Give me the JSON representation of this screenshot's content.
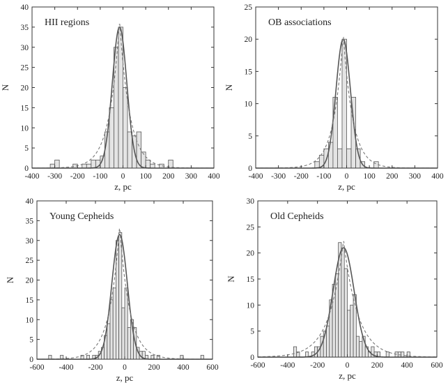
{
  "figure": {
    "colors": {
      "hist_fill": "#e4e4e4",
      "hist_edge": "#555555",
      "curve_solid": "#555555",
      "curve_dashed": "#777777",
      "axis": "#333333"
    }
  },
  "chart_data": [
    {
      "type": "bar",
      "title": "HII regions",
      "xlabel": "z, pc",
      "ylabel": "N",
      "xlim": [
        -400,
        400
      ],
      "ylim": [
        0,
        40
      ],
      "xticks": [
        -400,
        -300,
        -200,
        -100,
        0,
        100,
        200,
        300,
        400
      ],
      "yticks": [
        0,
        5,
        10,
        15,
        20,
        25,
        30,
        35,
        40
      ],
      "bin_width": 20,
      "bins": [
        {
          "x": -310,
          "n": 1
        },
        {
          "x": -290,
          "n": 2
        },
        {
          "x": -210,
          "n": 1
        },
        {
          "x": -190,
          "n": 0
        },
        {
          "x": -170,
          "n": 1
        },
        {
          "x": -150,
          "n": 1
        },
        {
          "x": -130,
          "n": 2
        },
        {
          "x": -110,
          "n": 2
        },
        {
          "x": -90,
          "n": 3
        },
        {
          "x": -70,
          "n": 9
        },
        {
          "x": -50,
          "n": 15
        },
        {
          "x": -30,
          "n": 30
        },
        {
          "x": -10,
          "n": 35
        },
        {
          "x": 10,
          "n": 20
        },
        {
          "x": 30,
          "n": 9
        },
        {
          "x": 50,
          "n": 8
        },
        {
          "x": 70,
          "n": 9
        },
        {
          "x": 90,
          "n": 4
        },
        {
          "x": 110,
          "n": 2
        },
        {
          "x": 130,
          "n": 1
        },
        {
          "x": 170,
          "n": 1
        },
        {
          "x": 210,
          "n": 2
        }
      ],
      "fits": [
        {
          "name": "solid",
          "model": "gaussian",
          "peak": 35,
          "center": -15,
          "width": 45
        },
        {
          "name": "dashed",
          "model": "exponential",
          "peak": 36.5,
          "center": -15,
          "width": 45
        }
      ]
    },
    {
      "type": "bar",
      "title": "OB associations",
      "xlabel": "z, pc",
      "ylabel": "N",
      "xlim": [
        -400,
        400
      ],
      "ylim": [
        0,
        25
      ],
      "xticks": [
        -400,
        -300,
        -200,
        -100,
        0,
        100,
        200,
        300,
        400
      ],
      "yticks": [
        0,
        5,
        10,
        15,
        20,
        25
      ],
      "bin_width": 20,
      "bins": [
        {
          "x": -130,
          "n": 1
        },
        {
          "x": -110,
          "n": 2
        },
        {
          "x": -90,
          "n": 3
        },
        {
          "x": -70,
          "n": 4
        },
        {
          "x": -50,
          "n": 11
        },
        {
          "x": -30,
          "n": 3
        },
        {
          "x": -10,
          "n": 20
        },
        {
          "x": 10,
          "n": 3
        },
        {
          "x": 30,
          "n": 11
        },
        {
          "x": 50,
          "n": 3
        },
        {
          "x": 70,
          "n": 1
        },
        {
          "x": 130,
          "n": 1
        }
      ],
      "fits": [
        {
          "name": "solid",
          "model": "gaussian",
          "peak": 20,
          "center": -15,
          "width": 45
        },
        {
          "name": "dashed",
          "model": "exponential",
          "peak": 20.8,
          "center": -15,
          "width": 42
        }
      ]
    },
    {
      "type": "bar",
      "title": "Young Cepheids",
      "xlabel": "z, pc",
      "ylabel": "N",
      "xlim": [
        -600,
        600
      ],
      "ylim": [
        0,
        40
      ],
      "xticks": [
        -600,
        -400,
        -200,
        0,
        200,
        400,
        600
      ],
      "yticks": [
        0,
        5,
        10,
        15,
        20,
        25,
        30,
        35,
        40
      ],
      "bin_width": 20,
      "bins": [
        {
          "x": -510,
          "n": 1
        },
        {
          "x": -430,
          "n": 1
        },
        {
          "x": -290,
          "n": 1
        },
        {
          "x": -250,
          "n": 1
        },
        {
          "x": -210,
          "n": 1
        },
        {
          "x": -190,
          "n": 1
        },
        {
          "x": -170,
          "n": 2
        },
        {
          "x": -150,
          "n": 3
        },
        {
          "x": -130,
          "n": 6
        },
        {
          "x": -110,
          "n": 9
        },
        {
          "x": -90,
          "n": 15
        },
        {
          "x": -70,
          "n": 18
        },
        {
          "x": -50,
          "n": 30
        },
        {
          "x": -30,
          "n": 32
        },
        {
          "x": -10,
          "n": 13
        },
        {
          "x": 10,
          "n": 18
        },
        {
          "x": 30,
          "n": 8
        },
        {
          "x": 50,
          "n": 10
        },
        {
          "x": 70,
          "n": 8
        },
        {
          "x": 90,
          "n": 3
        },
        {
          "x": 110,
          "n": 2
        },
        {
          "x": 130,
          "n": 2
        },
        {
          "x": 150,
          "n": 1
        },
        {
          "x": 190,
          "n": 1
        },
        {
          "x": 230,
          "n": 1
        },
        {
          "x": 390,
          "n": 1
        },
        {
          "x": 530,
          "n": 1
        }
      ],
      "fits": [
        {
          "name": "solid",
          "model": "gaussian",
          "peak": 31.5,
          "center": -35,
          "width": 75
        },
        {
          "name": "dashed",
          "model": "exponential",
          "peak": 33.5,
          "center": -35,
          "width": 70
        }
      ]
    },
    {
      "type": "bar",
      "title": "Old Cepheids",
      "xlabel": "z, pc",
      "ylabel": "N",
      "xlim": [
        -600,
        600
      ],
      "ylim": [
        0,
        30
      ],
      "xticks": [
        -600,
        -400,
        -200,
        0,
        200,
        400,
        600
      ],
      "yticks": [
        0,
        5,
        10,
        15,
        20,
        25,
        30
      ],
      "bin_width": 20,
      "bins": [
        {
          "x": -350,
          "n": 2
        },
        {
          "x": -330,
          "n": 1
        },
        {
          "x": -270,
          "n": 1
        },
        {
          "x": -230,
          "n": 1
        },
        {
          "x": -210,
          "n": 2
        },
        {
          "x": -190,
          "n": 2
        },
        {
          "x": -170,
          "n": 4
        },
        {
          "x": -150,
          "n": 5
        },
        {
          "x": -130,
          "n": 6
        },
        {
          "x": -110,
          "n": 11
        },
        {
          "x": -90,
          "n": 14
        },
        {
          "x": -70,
          "n": 16
        },
        {
          "x": -50,
          "n": 22
        },
        {
          "x": -30,
          "n": 21
        },
        {
          "x": -10,
          "n": 17
        },
        {
          "x": 10,
          "n": 9
        },
        {
          "x": 30,
          "n": 10
        },
        {
          "x": 50,
          "n": 12
        },
        {
          "x": 70,
          "n": 4
        },
        {
          "x": 90,
          "n": 3
        },
        {
          "x": 110,
          "n": 4
        },
        {
          "x": 130,
          "n": 2
        },
        {
          "x": 150,
          "n": 1
        },
        {
          "x": 170,
          "n": 2
        },
        {
          "x": 190,
          "n": 1
        },
        {
          "x": 210,
          "n": 1
        },
        {
          "x": 270,
          "n": 1
        },
        {
          "x": 330,
          "n": 1
        },
        {
          "x": 350,
          "n": 1
        },
        {
          "x": 370,
          "n": 1
        },
        {
          "x": 410,
          "n": 1
        }
      ],
      "fits": [
        {
          "name": "solid",
          "model": "gaussian",
          "peak": 21,
          "center": -25,
          "width": 100
        },
        {
          "name": "dashed",
          "model": "exponential",
          "peak": 22.5,
          "center": -25,
          "width": 95
        }
      ]
    }
  ]
}
